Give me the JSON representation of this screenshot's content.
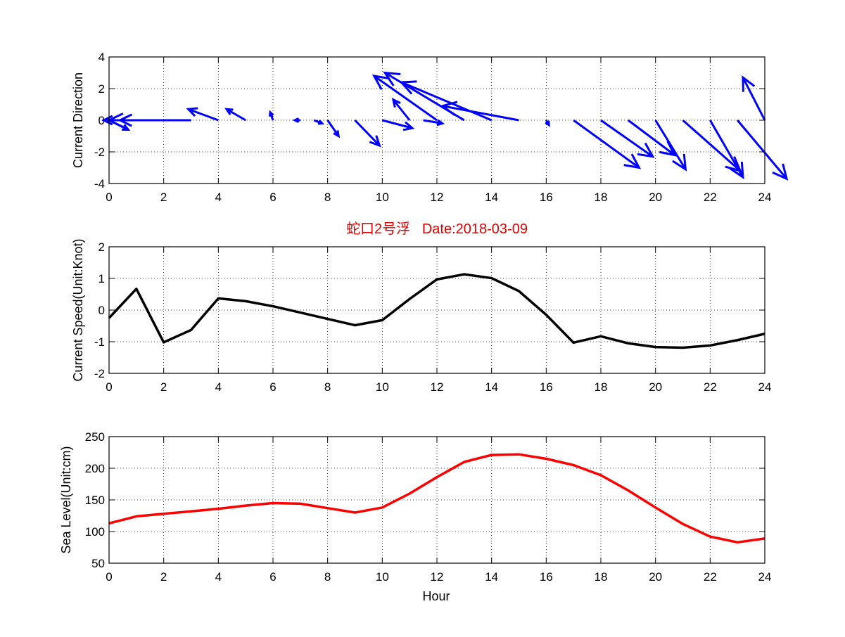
{
  "title": "蛇口2号浮   Date:2018-03-09",
  "colors": {
    "arrows": "#0000ff",
    "speed": "#000000",
    "sea_level": "#ff0000",
    "title": "#e00000"
  },
  "chart_data": [
    {
      "type": "quiver",
      "ylabel": "Current Direction",
      "xlim": [
        0,
        24
      ],
      "ylim": [
        -4,
        4
      ],
      "xticks": [
        0,
        2,
        4,
        6,
        8,
        10,
        12,
        14,
        16,
        18,
        20,
        22,
        24
      ],
      "yticks": [
        -4,
        -2,
        0,
        2,
        4
      ],
      "grid": true,
      "arrows": [
        {
          "x": 0,
          "u": 0.7,
          "v": -0.6
        },
        {
          "x": 1,
          "u": -1.2,
          "v": 0.0
        },
        {
          "x": 2,
          "u": -1.6,
          "v": 0.0
        },
        {
          "x": 3,
          "u": -3.0,
          "v": 0.0
        },
        {
          "x": 4,
          "u": -1.1,
          "v": 0.7
        },
        {
          "x": 5,
          "u": -0.7,
          "v": 0.7
        },
        {
          "x": 6,
          "u": -0.1,
          "v": 0.5
        },
        {
          "x": 7,
          "u": -0.2,
          "v": 0.0
        },
        {
          "x": 7.5,
          "u": 0.3,
          "v": -0.2
        },
        {
          "x": 8,
          "u": 0.4,
          "v": -1.0
        },
        {
          "x": 9,
          "u": 0.9,
          "v": -1.6
        },
        {
          "x": 10,
          "u": 1.1,
          "v": -0.5
        },
        {
          "x": 11,
          "u": -0.6,
          "v": 1.3
        },
        {
          "x": 11.5,
          "u": 0.7,
          "v": -0.2
        },
        {
          "x": 12,
          "u": -2.3,
          "v": 2.8
        },
        {
          "x": 13,
          "u": -2.9,
          "v": 3.0
        },
        {
          "x": 14,
          "u": -3.3,
          "v": 2.4
        },
        {
          "x": 15,
          "u": -2.8,
          "v": 0.9
        },
        {
          "x": 16,
          "u": 0.1,
          "v": -0.3
        },
        {
          "x": 17,
          "u": 2.4,
          "v": -3.0
        },
        {
          "x": 18,
          "u": 1.9,
          "v": -2.3
        },
        {
          "x": 19,
          "u": 1.7,
          "v": -2.2
        },
        {
          "x": 20,
          "u": 1.1,
          "v": -3.1
        },
        {
          "x": 21,
          "u": 2.1,
          "v": -3.2
        },
        {
          "x": 22,
          "u": 1.2,
          "v": -3.6
        },
        {
          "x": 23,
          "u": 1.8,
          "v": -3.7
        },
        {
          "x": 24,
          "u": -0.8,
          "v": 2.7
        }
      ]
    },
    {
      "type": "line",
      "ylabel": "Current Speed(Unit:Knot)",
      "xlim": [
        0,
        24
      ],
      "ylim": [
        -2,
        2
      ],
      "xticks": [
        0,
        2,
        4,
        6,
        8,
        10,
        12,
        14,
        16,
        18,
        20,
        22,
        24
      ],
      "yticks": [
        -2,
        -1,
        0,
        1,
        2
      ],
      "grid": true,
      "x": [
        0,
        1,
        2,
        3,
        4,
        5,
        6,
        7,
        8,
        9,
        10,
        11,
        12,
        13,
        14,
        15,
        16,
        17,
        18,
        19,
        20,
        21,
        22,
        23,
        24
      ],
      "values": [
        -0.25,
        0.67,
        -1.02,
        -0.63,
        0.37,
        0.28,
        0.12,
        -0.08,
        -0.28,
        -0.48,
        -0.32,
        0.35,
        0.97,
        1.13,
        1.01,
        0.6,
        -0.15,
        -1.03,
        -0.83,
        -1.05,
        -1.17,
        -1.19,
        -1.12,
        -0.95,
        -0.75
      ]
    },
    {
      "type": "line",
      "xlabel": "Hour",
      "ylabel": "Sea Level(Unit:cm)",
      "xlim": [
        0,
        24
      ],
      "ylim": [
        50,
        250
      ],
      "xticks": [
        0,
        2,
        4,
        6,
        8,
        10,
        12,
        14,
        16,
        18,
        20,
        22,
        24
      ],
      "yticks": [
        50,
        100,
        150,
        200,
        250
      ],
      "grid": true,
      "x": [
        0,
        1,
        2,
        3,
        4,
        5,
        6,
        7,
        8,
        9,
        10,
        11,
        12,
        13,
        14,
        15,
        16,
        17,
        18,
        19,
        20,
        21,
        22,
        23,
        24
      ],
      "values": [
        113,
        124,
        128,
        132,
        136,
        141,
        145,
        144,
        137,
        130,
        138,
        160,
        186,
        210,
        221,
        222,
        215,
        205,
        189,
        165,
        138,
        112,
        92,
        83,
        89
      ]
    }
  ]
}
